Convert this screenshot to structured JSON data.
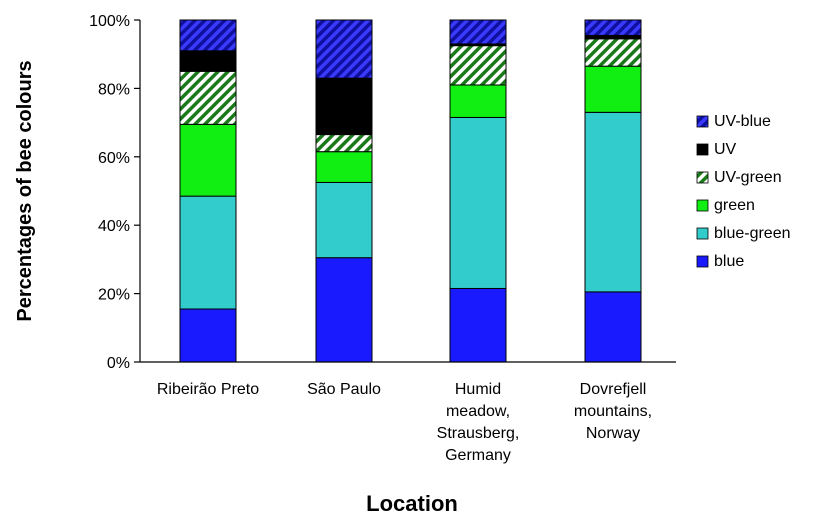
{
  "chart_data": {
    "type": "bar",
    "stacked": true,
    "orientation": "vertical",
    "categories": [
      [
        "Ribeirão Preto"
      ],
      [
        "São Paulo"
      ],
      [
        "Humid",
        "meadow,",
        "Strausberg,",
        "Germany"
      ],
      [
        "Dovrefjell",
        "mountains,",
        "Norway"
      ]
    ],
    "series": [
      {
        "name": "blue",
        "values": [
          15.5,
          30.5,
          21.5,
          20.5
        ],
        "color": "#1a1aff",
        "pattern": "solid"
      },
      {
        "name": "blue-green",
        "values": [
          33.0,
          22.0,
          50.0,
          52.5
        ],
        "color": "#33cccc",
        "pattern": "solid"
      },
      {
        "name": "green",
        "values": [
          21.0,
          9.0,
          9.5,
          13.5
        ],
        "color": "#11ee11",
        "pattern": "solid"
      },
      {
        "name": "UV-green",
        "values": [
          15.5,
          5.0,
          11.5,
          8.0
        ],
        "color": "#1a7a1a",
        "pattern": "diagonal-stripes"
      },
      {
        "name": "UV",
        "values": [
          6.0,
          16.5,
          0.5,
          1.0
        ],
        "color": "#000000",
        "pattern": "solid"
      },
      {
        "name": "UV-blue",
        "values": [
          9.0,
          17.0,
          7.0,
          4.5
        ],
        "color": "#1a1acc",
        "pattern": "diagonal-stripes"
      }
    ],
    "xlabel": "Location",
    "ylabel": "Percentages of bee colours",
    "ylim": [
      0,
      100
    ],
    "yticks": [
      "0%",
      "20%",
      "40%",
      "60%",
      "80%",
      "100%"
    ],
    "legend": {
      "placement": "right",
      "order": [
        "UV-blue",
        "UV",
        "UV-green",
        "green",
        "blue-green",
        "blue"
      ]
    },
    "grid": false
  }
}
